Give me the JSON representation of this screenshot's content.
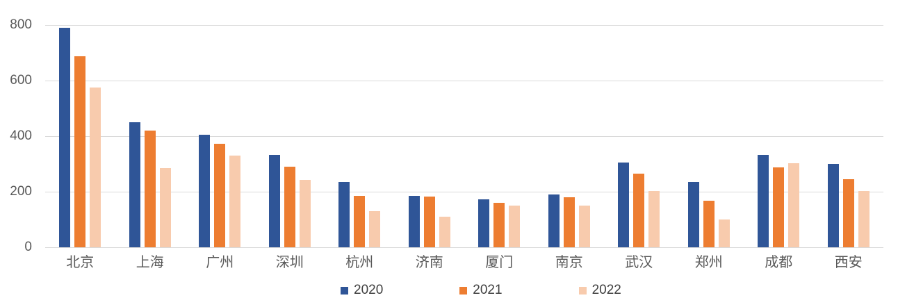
{
  "chart_data": {
    "type": "bar",
    "title": "",
    "xlabel": "",
    "ylabel": "",
    "categories": [
      "北京",
      "上海",
      "广州",
      "深圳",
      "杭州",
      "济南",
      "厦门",
      "南京",
      "武汉",
      "郑州",
      "成都",
      "西安"
    ],
    "series": [
      {
        "name": "2020",
        "color": "#2F5597",
        "values": [
          790,
          450,
          405,
          332,
          235,
          185,
          172,
          190,
          305,
          235,
          332,
          300
        ]
      },
      {
        "name": "2021",
        "color": "#ED7D31",
        "values": [
          688,
          420,
          373,
          290,
          185,
          182,
          160,
          180,
          265,
          168,
          287,
          245
        ]
      },
      {
        "name": "2022",
        "color": "#F8CBAD",
        "values": [
          575,
          285,
          330,
          242,
          130,
          110,
          150,
          150,
          202,
          100,
          302,
          202
        ]
      }
    ],
    "y_ticks": [
      0,
      200,
      400,
      600,
      800
    ],
    "ylim": [
      0,
      800
    ],
    "grid": true,
    "legend_position": "bottom"
  },
  "colors": {
    "background": "#FFFFFF",
    "gridline": "#D9D9D9",
    "axis_text": "#595959",
    "legend_text": "#404040"
  }
}
